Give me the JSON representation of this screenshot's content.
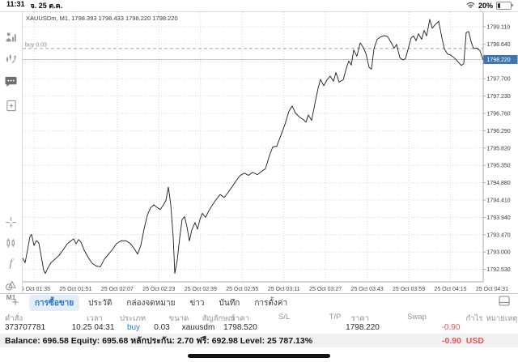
{
  "status_bar": {
    "time": "11:31",
    "date": "จ. 25 ต.ค.",
    "battery_percent": "20%"
  },
  "sidebar": {
    "timeframe_label": "M1",
    "icons": [
      "quotes-icon",
      "chart-icon",
      "chat-icon",
      "new-chart-icon",
      "crosshair-icon",
      "candles-icon",
      "indicator-icon",
      "objects-icon"
    ]
  },
  "chart": {
    "info_line": "XAUUSDm, M1, 1798.393 1798.433 1798.220 1798.220",
    "buy_label": "buy 0.03",
    "price_badge": "1798.220",
    "colors": {
      "badge": "#3f76ab",
      "buy_line": "#9aa09e",
      "current_line": "#c7ccd1",
      "grid": "#d8d8d8",
      "line": "#1c1c1c"
    }
  },
  "chart_data": {
    "type": "line",
    "title": "XAUUSDm, M1, 1798.393 1798.433 1798.220 1798.220",
    "symbol": "XAUUSDm",
    "timeframe": "M1",
    "legend_position": "none",
    "grid": true,
    "x_unit": "screen px (28-597) spanning 25 Oct 01:30 - 04:31",
    "x_ticks": [
      "25 Oct 01:35",
      "25 Oct 01:51",
      "25 Oct 02:07",
      "25 Oct 02:23",
      "25 Oct 02:39",
      "25 Oct 02:55",
      "25 Oct 03:11",
      "25 Oct 03:27",
      "25 Oct 03:43",
      "25 Oct 03:59",
      "25 Oct 04:15",
      "25 Oct 04:31"
    ],
    "y_ticks": [
      "1799.110",
      "1798.640",
      "1798.170",
      "1797.700",
      "1797.230",
      "1796.760",
      "1796.290",
      "1795.820",
      "1795.350",
      "1794.880",
      "1794.410",
      "1793.940",
      "1793.470",
      "1793.000",
      "1792.530"
    ],
    "y_tick_step": 0.47,
    "ylim": [
      1792.19,
      1799.51
    ],
    "buy_line": {
      "price": 1798.52,
      "label": "buy 0.03"
    },
    "current_price": 1798.22,
    "series": [
      {
        "name": "XAUUSDm M1 close",
        "points": [
          [
            28,
            1792.84
          ],
          [
            31,
            1792.71
          ],
          [
            34,
            1793.05
          ],
          [
            37,
            1793.42
          ],
          [
            39,
            1793.48
          ],
          [
            42,
            1793.18
          ],
          [
            45,
            1793.31
          ],
          [
            48,
            1793.24
          ],
          [
            51,
            1792.88
          ],
          [
            54,
            1792.5
          ],
          [
            56,
            1792.42
          ],
          [
            59,
            1792.56
          ],
          [
            63,
            1792.71
          ],
          [
            68,
            1792.81
          ],
          [
            73,
            1792.91
          ],
          [
            78,
            1793.06
          ],
          [
            83,
            1793.22
          ],
          [
            88,
            1793.31
          ],
          [
            91,
            1793.36
          ],
          [
            94,
            1793.22
          ],
          [
            97,
            1793.34
          ],
          [
            100,
            1793.27
          ],
          [
            104,
            1793.05
          ],
          [
            109,
            1792.85
          ],
          [
            114,
            1792.69
          ],
          [
            119,
            1792.62
          ],
          [
            124,
            1792.6
          ],
          [
            129,
            1792.81
          ],
          [
            134,
            1792.94
          ],
          [
            139,
            1793.07
          ],
          [
            144,
            1793.23
          ],
          [
            150,
            1793.31
          ],
          [
            156,
            1793.3
          ],
          [
            161,
            1793.23
          ],
          [
            166,
            1793.09
          ],
          [
            170,
            1792.94
          ],
          [
            174,
            1793.18
          ],
          [
            178,
            1793.62
          ],
          [
            182,
            1794.0
          ],
          [
            186,
            1794.2
          ],
          [
            190,
            1794.28
          ],
          [
            194,
            1794.21
          ],
          [
            198,
            1794.15
          ],
          [
            202,
            1794.28
          ],
          [
            205,
            1794.4
          ],
          [
            208,
            1794.76
          ],
          [
            211,
            1794.28
          ],
          [
            214,
            1793.4
          ],
          [
            216,
            1792.42
          ],
          [
            219,
            1792.78
          ],
          [
            222,
            1793.38
          ],
          [
            225,
            1793.88
          ],
          [
            228,
            1793.96
          ],
          [
            231,
            1793.68
          ],
          [
            234,
            1793.3
          ],
          [
            237,
            1793.6
          ],
          [
            241,
            1793.8
          ],
          [
            244,
            1793.62
          ],
          [
            247,
            1793.88
          ],
          [
            250,
            1794.05
          ],
          [
            254,
            1793.94
          ],
          [
            258,
            1794.12
          ],
          [
            262,
            1794.26
          ],
          [
            267,
            1794.42
          ],
          [
            272,
            1794.56
          ],
          [
            277,
            1794.48
          ],
          [
            282,
            1794.62
          ],
          [
            287,
            1794.78
          ],
          [
            292,
            1794.94
          ],
          [
            297,
            1795.08
          ],
          [
            302,
            1795.14
          ],
          [
            307,
            1795.08
          ],
          [
            312,
            1795.16
          ],
          [
            318,
            1795.1
          ],
          [
            323,
            1795.18
          ],
          [
            328,
            1795.26
          ],
          [
            333,
            1795.62
          ],
          [
            337,
            1795.85
          ],
          [
            342,
            1795.87
          ],
          [
            347,
            1796.16
          ],
          [
            352,
            1796.46
          ],
          [
            357,
            1796.82
          ],
          [
            361,
            1796.96
          ],
          [
            365,
            1796.77
          ],
          [
            370,
            1796.66
          ],
          [
            375,
            1796.59
          ],
          [
            378,
            1796.52
          ],
          [
            381,
            1796.72
          ],
          [
            385,
            1796.57
          ],
          [
            389,
            1797.02
          ],
          [
            393,
            1797.44
          ],
          [
            396,
            1797.68
          ],
          [
            400,
            1797.51
          ],
          [
            404,
            1797.67
          ],
          [
            408,
            1797.77
          ],
          [
            412,
            1797.63
          ],
          [
            415,
            1797.87
          ],
          [
            419,
            1797.61
          ],
          [
            424,
            1797.67
          ],
          [
            428,
            1797.99
          ],
          [
            431,
            1798.18
          ],
          [
            434,
            1798.07
          ],
          [
            437,
            1798.48
          ],
          [
            441,
            1798.31
          ],
          [
            445,
            1798.67
          ],
          [
            448,
            1798.58
          ],
          [
            452,
            1798.39
          ],
          [
            456,
            1798.01
          ],
          [
            459,
            1797.96
          ],
          [
            462,
            1798.51
          ],
          [
            466,
            1798.77
          ],
          [
            470,
            1798.83
          ],
          [
            475,
            1798.87
          ],
          [
            479,
            1798.84
          ],
          [
            483,
            1798.69
          ],
          [
            487,
            1798.53
          ],
          [
            490,
            1798.63
          ],
          [
            494,
            1798.27
          ],
          [
            498,
            1798.21
          ],
          [
            501,
            1798.25
          ],
          [
            505,
            1798.57
          ],
          [
            508,
            1798.81
          ],
          [
            511,
            1798.86
          ],
          [
            514,
            1798.73
          ],
          [
            517,
            1798.92
          ],
          [
            521,
            1798.77
          ],
          [
            524,
            1799.01
          ],
          [
            527,
            1798.86
          ],
          [
            531,
            1799.31
          ],
          [
            534,
            1799.07
          ],
          [
            537,
            1799.15
          ],
          [
            542,
            1799.26
          ],
          [
            546,
            1798.81
          ],
          [
            549,
            1798.51
          ],
          [
            553,
            1798.37
          ],
          [
            557,
            1798.34
          ],
          [
            561,
            1798.27
          ],
          [
            565,
            1798.18
          ],
          [
            570,
            1798.06
          ],
          [
            573,
            1798.11
          ],
          [
            576,
            1798.95
          ],
          [
            579,
            1798.98
          ],
          [
            582,
            1798.71
          ],
          [
            585,
            1798.52
          ],
          [
            589,
            1798.53
          ],
          [
            593,
            1798.46
          ],
          [
            595,
            1798.33
          ],
          [
            597,
            1798.22
          ]
        ]
      }
    ]
  },
  "bottom_panel": {
    "tabs": [
      {
        "name": "tab-trade",
        "label": "การซื้อขาย",
        "active": true
      },
      {
        "name": "tab-history",
        "label": "ประวัติ",
        "active": false
      },
      {
        "name": "tab-mailbox",
        "label": "กล่องจดหมาย",
        "active": false
      },
      {
        "name": "tab-news",
        "label": "ข่าว",
        "active": false
      },
      {
        "name": "tab-journal",
        "label": "บันทึก",
        "active": false
      },
      {
        "name": "tab-settings",
        "label": "การตั้งค่า",
        "active": false
      }
    ],
    "table": {
      "headers": [
        "คำสั่ง",
        "เวลา",
        "ประเภท",
        "ขนาด",
        "สัญลักษณ์",
        "ราคา",
        "S/L",
        "T/P",
        "ราคา",
        "Swap",
        "กำไร",
        "หมายเหตุ"
      ],
      "rows": [
        [
          "373707781",
          "10.25 04:31",
          "buy",
          "0.03",
          "xauusdm",
          "1798.520",
          "",
          "",
          "1798.220",
          "",
          "-0.90",
          ""
        ]
      ]
    },
    "balance_line": "Balance: 696.58 Equity: 695.68 หลักประกัน: 2.70 ฟรี: 692.98 Level: 25 787.13%",
    "floating_profit": "-0.90",
    "currency": "USD"
  }
}
